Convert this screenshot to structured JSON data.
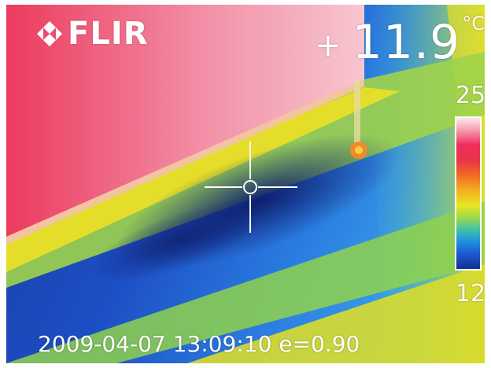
{
  "logo": {
    "text": "FLIR"
  },
  "spot_measurement": {
    "marker": "+",
    "value": "11.9",
    "unit": "°C"
  },
  "temperature_scale": {
    "max": "25",
    "min": "12"
  },
  "info": {
    "datetime": "2009-04-07 13:09:10",
    "emissivity": "e=0.90"
  },
  "icons": [
    "flir-logo-icon",
    "crosshair-icon",
    "spot-marker-icon"
  ]
}
